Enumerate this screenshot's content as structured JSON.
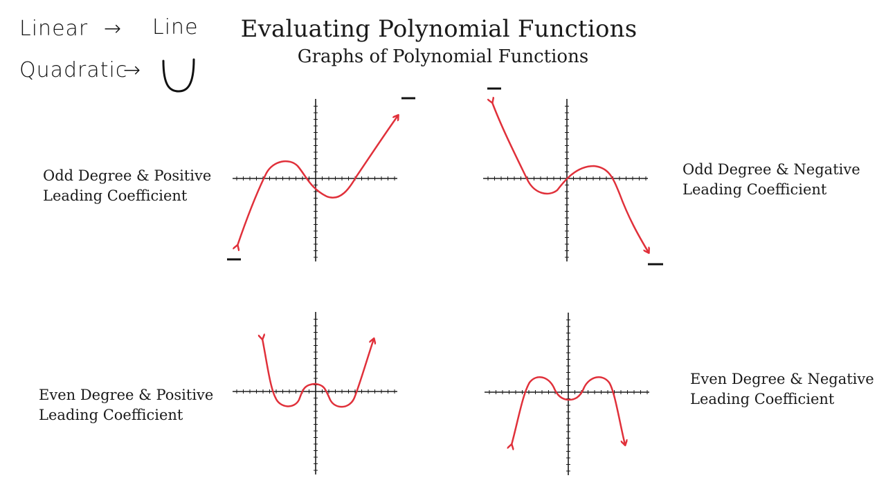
{
  "header": {
    "title": "Evaluating Polynomial Functions",
    "subtitle": "Graphs of Polynomial Functions"
  },
  "notes": {
    "linear_word": "Linear",
    "linear_arrow": "→",
    "linear_result": "Line",
    "quadratic_word": "Quadratic",
    "quadratic_arrow": "→"
  },
  "graphs": [
    {
      "line1": "Odd Degree & Positive",
      "line2": "Leading Coefficient"
    },
    {
      "line1": "Odd Degree & Negative",
      "line2": "Leading Coefficient"
    },
    {
      "line1": "Even Degree & Positive",
      "line2": "Leading Coefficient"
    },
    {
      "line1": "Even Degree & Negative",
      "line2": "Leading Coefficient"
    }
  ],
  "colors": {
    "curve": "#e0303a",
    "axis": "#1a1a1a",
    "text": "#1a1a1a"
  }
}
